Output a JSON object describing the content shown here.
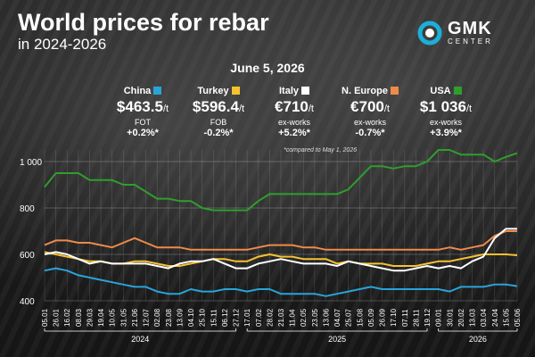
{
  "title": "World prices for rebar",
  "subtitle": "in 2024-2026",
  "logo": {
    "main": "GMK",
    "sub": "CENTER",
    "colors": {
      "ring": "#1ab0d8",
      "core": "#ffffff"
    }
  },
  "date": "June 5, 2026",
  "note": "*compared to May 1, 2026",
  "legend": [
    {
      "name": "China",
      "color": "#29a3d9",
      "currency": "$",
      "price": "463.5",
      "unit": "/t",
      "basis": "FOT",
      "change": "+0.2%*"
    },
    {
      "name": "Turkey",
      "color": "#f5c230",
      "currency": "$",
      "price": "596.4",
      "unit": "/t",
      "basis": "FOB",
      "change": "-0.2%*"
    },
    {
      "name": "Italy",
      "color": "#ffffff",
      "currency": "€",
      "price": "710",
      "unit": "/t",
      "basis": "ex-works",
      "change": "+5.2%*"
    },
    {
      "name": "N. Europe",
      "color": "#ee8a4a",
      "currency": "€",
      "price": "700",
      "unit": "/t",
      "basis": "ex-works",
      "change": "-0.7%*"
    },
    {
      "name": "USA",
      "color": "#2e9e2e",
      "currency": "$",
      "price": "1 036",
      "unit": "/t",
      "basis": "ex-works",
      "change": "+3.9%*"
    }
  ],
  "chart_data": {
    "type": "line",
    "ylim": [
      400,
      1050
    ],
    "yticks": [
      400,
      600,
      800,
      1000
    ],
    "grid": true,
    "x": [
      "05.01",
      "26.01",
      "16.02",
      "08.03",
      "29.03",
      "19.04",
      "10.05",
      "31.05",
      "21.06",
      "12.07",
      "02.08",
      "23.08",
      "13.09",
      "04.10",
      "25.10",
      "15.11",
      "06.12",
      "27.12",
      "17.01",
      "07.02",
      "28.02",
      "21.03",
      "11.04",
      "02.05",
      "23.05",
      "13.06",
      "04.07",
      "25.07",
      "15.08",
      "05.09",
      "26.09",
      "17.10",
      "07.11",
      "28.11",
      "19.12",
      "09.01",
      "30.01",
      "20.02",
      "13.03",
      "03.04",
      "24.04",
      "15.05",
      "05.06"
    ],
    "years": [
      {
        "label": "2024",
        "from": "05.01",
        "to": "27.12"
      },
      {
        "label": "2025",
        "from": "17.01",
        "to": "19.12"
      },
      {
        "label": "2026",
        "from": "09.01",
        "to": "05.06"
      }
    ],
    "series": [
      {
        "name": "USA",
        "color": "#2e9e2e",
        "values": [
          890,
          950,
          950,
          950,
          920,
          920,
          920,
          900,
          900,
          870,
          840,
          840,
          830,
          830,
          800,
          790,
          790,
          790,
          790,
          830,
          860,
          860,
          860,
          860,
          860,
          860,
          860,
          880,
          930,
          980,
          980,
          970,
          980,
          980,
          1000,
          1050,
          1050,
          1030,
          1030,
          1030,
          1000,
          1020,
          1036
        ]
      },
      {
        "name": "N. Europe",
        "color": "#ee8a4a",
        "values": [
          640,
          660,
          660,
          650,
          650,
          640,
          630,
          650,
          670,
          650,
          630,
          630,
          630,
          620,
          620,
          620,
          620,
          620,
          620,
          630,
          640,
          640,
          640,
          630,
          630,
          620,
          620,
          620,
          620,
          620,
          620,
          620,
          620,
          620,
          620,
          620,
          630,
          620,
          630,
          640,
          680,
          700,
          700
        ]
      },
      {
        "name": "Turkey",
        "color": "#f5c230",
        "values": [
          610,
          600,
          590,
          580,
          570,
          570,
          560,
          560,
          570,
          570,
          560,
          550,
          550,
          560,
          570,
          580,
          580,
          570,
          570,
          590,
          600,
          590,
          590,
          580,
          580,
          580,
          560,
          570,
          560,
          560,
          560,
          550,
          550,
          550,
          560,
          570,
          570,
          580,
          590,
          600,
          600,
          600,
          596
        ]
      },
      {
        "name": "Italy",
        "color": "#ffffff",
        "values": [
          600,
          610,
          600,
          580,
          560,
          570,
          560,
          560,
          560,
          560,
          550,
          540,
          560,
          570,
          570,
          580,
          560,
          540,
          540,
          560,
          570,
          580,
          570,
          560,
          560,
          560,
          550,
          570,
          560,
          550,
          540,
          530,
          530,
          540,
          550,
          540,
          550,
          540,
          570,
          590,
          670,
          710,
          710
        ]
      },
      {
        "name": "China",
        "color": "#29a3d9",
        "values": [
          530,
          540,
          530,
          510,
          500,
          490,
          480,
          470,
          460,
          460,
          440,
          430,
          430,
          450,
          440,
          440,
          450,
          450,
          440,
          450,
          450,
          430,
          430,
          430,
          430,
          420,
          430,
          440,
          450,
          460,
          450,
          450,
          450,
          450,
          450,
          450,
          440,
          460,
          460,
          460,
          470,
          470,
          463
        ]
      }
    ]
  }
}
